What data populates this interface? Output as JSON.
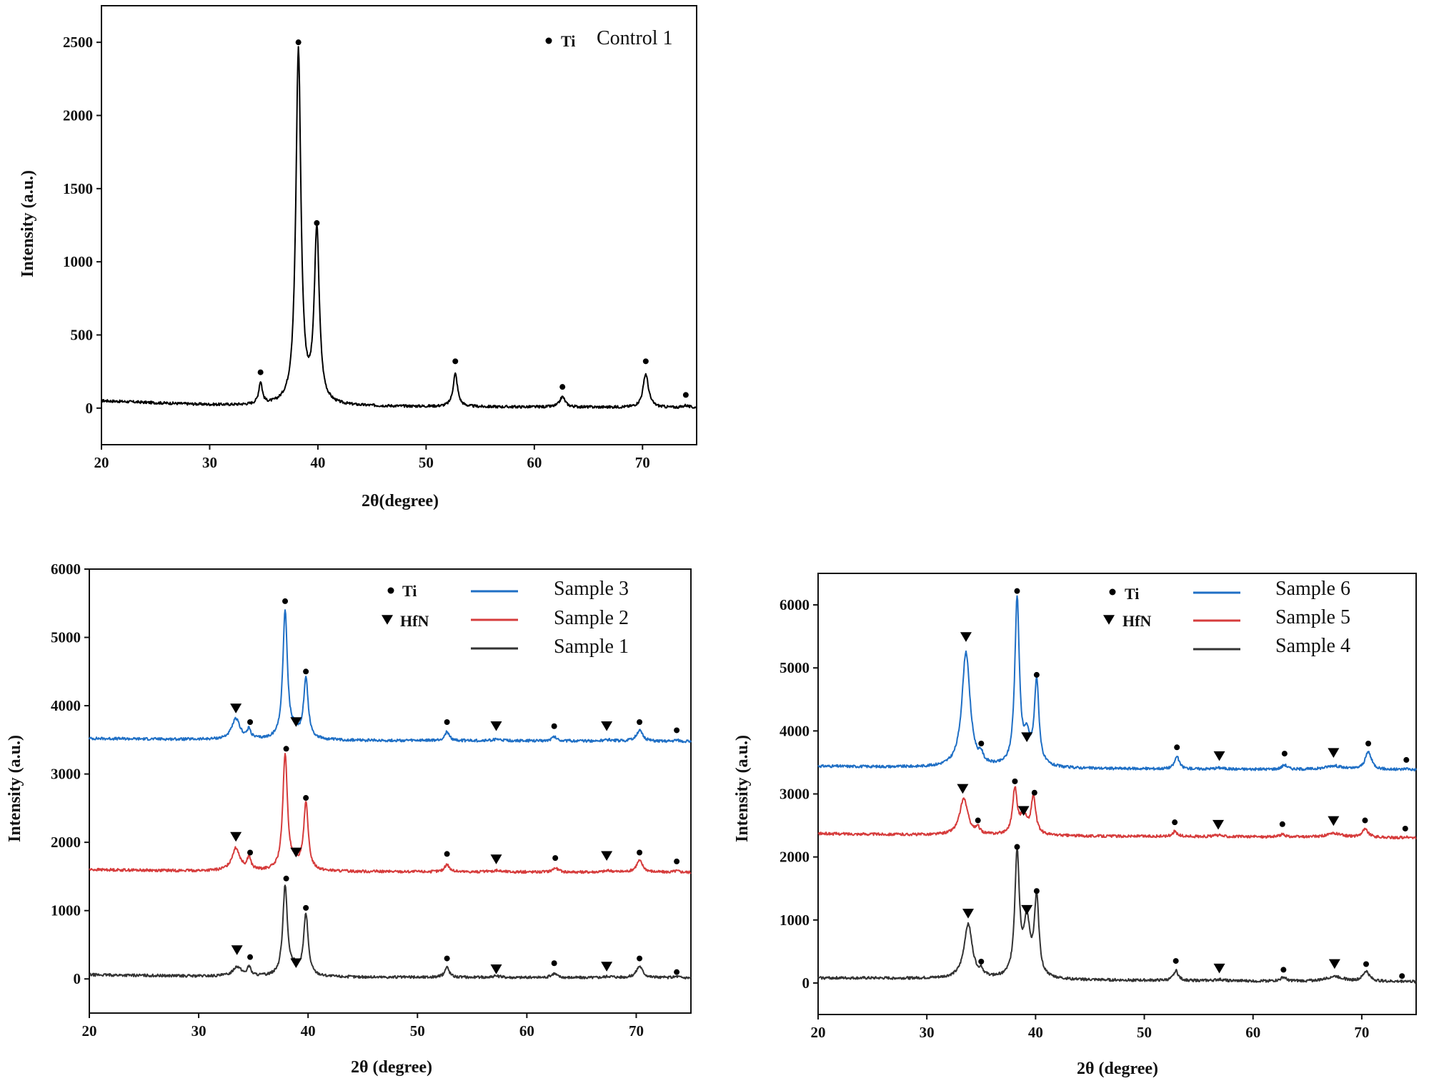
{
  "chart_data": [
    {
      "type": "line",
      "title": "",
      "xlabel": "2θ(degree)",
      "ylabel": "Intensity (a.u.)",
      "xlim": [
        20,
        75
      ],
      "ylim": [
        -250,
        2750
      ],
      "xticks": [
        20,
        30,
        40,
        50,
        60,
        70
      ],
      "yticks": [
        0,
        500,
        1000,
        1500,
        2000,
        2500
      ],
      "legend_placement": "top-right",
      "phase_legend": [
        {
          "symbol": "●",
          "label": "Ti"
        }
      ],
      "series": [
        {
          "name": "Control 1",
          "color": "#000000",
          "baseline": [
            [
              20,
              50
            ],
            [
              25,
              35
            ],
            [
              30,
              22
            ],
            [
              35,
              15
            ],
            [
              45,
              12
            ],
            [
              55,
              8
            ],
            [
              65,
              6
            ],
            [
              75,
              2
            ]
          ],
          "peaks": [
            [
              34.7,
              150,
              0.2
            ],
            [
              38.2,
              2420,
              0.28
            ],
            [
              39.9,
              1180,
              0.28
            ],
            [
              52.7,
              225,
              0.25
            ],
            [
              62.6,
              70,
              0.3
            ],
            [
              70.3,
              230,
              0.3
            ],
            [
              74.0,
              15,
              0.3
            ]
          ],
          "markers": [
            {
              "x": 34.7,
              "y": 245,
              "symbol": "dot"
            },
            {
              "x": 38.2,
              "y": 2500,
              "symbol": "dot"
            },
            {
              "x": 39.9,
              "y": 1265,
              "symbol": "dot"
            },
            {
              "x": 52.7,
              "y": 320,
              "symbol": "dot"
            },
            {
              "x": 62.6,
              "y": 145,
              "symbol": "dot"
            },
            {
              "x": 70.3,
              "y": 320,
              "symbol": "dot"
            },
            {
              "x": 74.0,
              "y": 90,
              "symbol": "dot"
            }
          ]
        }
      ]
    },
    {
      "type": "line",
      "title": "",
      "xlabel": "2θ (degree)",
      "ylabel": "Intensity (a.u.)",
      "xlim": [
        20,
        75
      ],
      "ylim": [
        -500,
        6000
      ],
      "xticks": [
        20,
        30,
        40,
        50,
        60,
        70
      ],
      "yticks": [
        0,
        1000,
        2000,
        3000,
        4000,
        5000,
        6000
      ],
      "legend_placement": "top-right",
      "phase_legend": [
        {
          "symbol": "●",
          "label": "Ti"
        },
        {
          "symbol": "▼",
          "label": "HfN"
        }
      ],
      "series": [
        {
          "name": "Sample 3",
          "color": "#1f6fc5",
          "baseline": [
            [
              20,
              3520
            ],
            [
              30,
              3505
            ],
            [
              45,
              3490
            ],
            [
              60,
              3485
            ],
            [
              75,
              3475
            ]
          ],
          "peaks": [
            [
              33.4,
              300,
              0.45
            ],
            [
              34.6,
              130,
              0.2
            ],
            [
              37.9,
              1880,
              0.25
            ],
            [
              38.8,
              100,
              0.4
            ],
            [
              39.8,
              880,
              0.25
            ],
            [
              52.7,
              130,
              0.25
            ],
            [
              57.2,
              20,
              0.5
            ],
            [
              62.5,
              60,
              0.3
            ],
            [
              67.5,
              20,
              0.5
            ],
            [
              70.3,
              160,
              0.35
            ],
            [
              73.7,
              20,
              0.3
            ]
          ],
          "markers": [
            {
              "x": 33.4,
              "y": 3960,
              "symbol": "tri"
            },
            {
              "x": 34.7,
              "y": 3760,
              "symbol": "dot"
            },
            {
              "x": 37.9,
              "y": 5530,
              "symbol": "dot"
            },
            {
              "x": 38.9,
              "y": 3760,
              "symbol": "tri"
            },
            {
              "x": 39.8,
              "y": 4500,
              "symbol": "dot"
            },
            {
              "x": 52.7,
              "y": 3760,
              "symbol": "dot"
            },
            {
              "x": 57.2,
              "y": 3700,
              "symbol": "tri"
            },
            {
              "x": 62.5,
              "y": 3700,
              "symbol": "dot"
            },
            {
              "x": 67.3,
              "y": 3700,
              "symbol": "tri"
            },
            {
              "x": 70.3,
              "y": 3760,
              "symbol": "dot"
            },
            {
              "x": 73.7,
              "y": 3640,
              "symbol": "dot"
            }
          ]
        },
        {
          "name": "Sample 2",
          "color": "#d63c3c",
          "baseline": [
            [
              20,
              1600
            ],
            [
              30,
              1580
            ],
            [
              45,
              1570
            ],
            [
              60,
              1565
            ],
            [
              75,
              1560
            ]
          ],
          "peaks": [
            [
              33.4,
              330,
              0.45
            ],
            [
              34.6,
              180,
              0.2
            ],
            [
              37.9,
              1700,
              0.25
            ],
            [
              38.8,
              100,
              0.4
            ],
            [
              39.8,
              980,
              0.25
            ],
            [
              52.7,
              110,
              0.25
            ],
            [
              57.2,
              20,
              0.5
            ],
            [
              62.6,
              60,
              0.3
            ],
            [
              67.5,
              20,
              0.5
            ],
            [
              70.3,
              170,
              0.35
            ],
            [
              73.7,
              20,
              0.3
            ]
          ],
          "markers": [
            {
              "x": 33.4,
              "y": 2080,
              "symbol": "tri"
            },
            {
              "x": 34.7,
              "y": 1850,
              "symbol": "dot"
            },
            {
              "x": 38.0,
              "y": 3370,
              "symbol": "dot"
            },
            {
              "x": 38.9,
              "y": 1850,
              "symbol": "tri"
            },
            {
              "x": 39.8,
              "y": 2650,
              "symbol": "dot"
            },
            {
              "x": 52.7,
              "y": 1830,
              "symbol": "dot"
            },
            {
              "x": 57.2,
              "y": 1750,
              "symbol": "tri"
            },
            {
              "x": 62.6,
              "y": 1770,
              "symbol": "dot"
            },
            {
              "x": 67.3,
              "y": 1800,
              "symbol": "tri"
            },
            {
              "x": 70.3,
              "y": 1850,
              "symbol": "dot"
            },
            {
              "x": 73.7,
              "y": 1720,
              "symbol": "dot"
            }
          ]
        },
        {
          "name": "Sample 1",
          "color": "#333333",
          "baseline": [
            [
              20,
              60
            ],
            [
              30,
              40
            ],
            [
              45,
              25
            ],
            [
              60,
              20
            ],
            [
              75,
              15
            ]
          ],
          "peaks": [
            [
              33.5,
              140,
              0.45
            ],
            [
              34.6,
              130,
              0.2
            ],
            [
              37.9,
              1320,
              0.25
            ],
            [
              38.8,
              100,
              0.4
            ],
            [
              39.8,
              900,
              0.25
            ],
            [
              52.7,
              150,
              0.25
            ],
            [
              57.2,
              20,
              0.5
            ],
            [
              62.5,
              60,
              0.3
            ],
            [
              67.5,
              20,
              0.5
            ],
            [
              70.3,
              170,
              0.35
            ],
            [
              73.7,
              20,
              0.3
            ]
          ],
          "markers": [
            {
              "x": 33.5,
              "y": 420,
              "symbol": "tri"
            },
            {
              "x": 34.7,
              "y": 320,
              "symbol": "dot"
            },
            {
              "x": 38.0,
              "y": 1470,
              "symbol": "dot"
            },
            {
              "x": 38.9,
              "y": 230,
              "symbol": "tri"
            },
            {
              "x": 39.8,
              "y": 1040,
              "symbol": "dot"
            },
            {
              "x": 52.7,
              "y": 300,
              "symbol": "dot"
            },
            {
              "x": 57.2,
              "y": 140,
              "symbol": "tri"
            },
            {
              "x": 62.5,
              "y": 230,
              "symbol": "dot"
            },
            {
              "x": 67.3,
              "y": 180,
              "symbol": "tri"
            },
            {
              "x": 70.3,
              "y": 300,
              "symbol": "dot"
            },
            {
              "x": 73.7,
              "y": 100,
              "symbol": "dot"
            }
          ]
        }
      ]
    },
    {
      "type": "line",
      "title": "",
      "xlabel": "2θ (degree)",
      "ylabel": "Intensity (a.u.)",
      "xlim": [
        20,
        75
      ],
      "ylim": [
        -500,
        6500
      ],
      "xticks": [
        20,
        30,
        40,
        50,
        60,
        70
      ],
      "yticks": [
        0,
        1000,
        2000,
        3000,
        4000,
        5000,
        6000
      ],
      "legend_placement": "top-right",
      "phase_legend": [
        {
          "symbol": "●",
          "label": "Ti"
        },
        {
          "symbol": "▼",
          "label": "HfN"
        }
      ],
      "series": [
        {
          "name": "Sample 6",
          "color": "#1f6fc5",
          "baseline": [
            [
              20,
              3440
            ],
            [
              30,
              3420
            ],
            [
              45,
              3400
            ],
            [
              60,
              3390
            ],
            [
              75,
              3380
            ]
          ],
          "peaks": [
            [
              33.6,
              1830,
              0.45
            ],
            [
              35.0,
              120,
              0.2
            ],
            [
              38.3,
              2650,
              0.25
            ],
            [
              39.2,
              400,
              0.35
            ],
            [
              40.1,
              1350,
              0.25
            ],
            [
              53.0,
              200,
              0.25
            ],
            [
              56.9,
              20,
              0.5
            ],
            [
              62.9,
              70,
              0.3
            ],
            [
              67.4,
              60,
              0.9
            ],
            [
              70.6,
              280,
              0.35
            ],
            [
              74.1,
              20,
              0.3
            ]
          ],
          "markers": [
            {
              "x": 33.6,
              "y": 5490,
              "symbol": "tri"
            },
            {
              "x": 35.0,
              "y": 3800,
              "symbol": "dot"
            },
            {
              "x": 38.3,
              "y": 6220,
              "symbol": "dot"
            },
            {
              "x": 39.2,
              "y": 3900,
              "symbol": "tri"
            },
            {
              "x": 40.1,
              "y": 4890,
              "symbol": "dot"
            },
            {
              "x": 53.0,
              "y": 3740,
              "symbol": "dot"
            },
            {
              "x": 56.9,
              "y": 3600,
              "symbol": "tri"
            },
            {
              "x": 62.9,
              "y": 3640,
              "symbol": "dot"
            },
            {
              "x": 67.4,
              "y": 3650,
              "symbol": "tri"
            },
            {
              "x": 70.6,
              "y": 3800,
              "symbol": "dot"
            },
            {
              "x": 74.1,
              "y": 3540,
              "symbol": "dot"
            }
          ]
        },
        {
          "name": "Sample 5",
          "color": "#d63c3c",
          "baseline": [
            [
              20,
              2370
            ],
            [
              30,
              2350
            ],
            [
              45,
              2330
            ],
            [
              60,
              2320
            ],
            [
              75,
              2300
            ]
          ],
          "peaks": [
            [
              33.4,
              580,
              0.45
            ],
            [
              34.7,
              90,
              0.2
            ],
            [
              38.1,
              720,
              0.25
            ],
            [
              38.9,
              300,
              0.35
            ],
            [
              39.8,
              600,
              0.25
            ],
            [
              52.8,
              80,
              0.25
            ],
            [
              56.8,
              20,
              0.5
            ],
            [
              62.7,
              40,
              0.3
            ],
            [
              67.5,
              60,
              0.9
            ],
            [
              70.3,
              130,
              0.35
            ],
            [
              74.0,
              10,
              0.3
            ]
          ],
          "markers": [
            {
              "x": 33.3,
              "y": 3080,
              "symbol": "tri"
            },
            {
              "x": 34.7,
              "y": 2580,
              "symbol": "dot"
            },
            {
              "x": 38.1,
              "y": 3200,
              "symbol": "dot"
            },
            {
              "x": 38.9,
              "y": 2730,
              "symbol": "tri"
            },
            {
              "x": 39.9,
              "y": 3020,
              "symbol": "dot"
            },
            {
              "x": 52.8,
              "y": 2550,
              "symbol": "dot"
            },
            {
              "x": 56.8,
              "y": 2510,
              "symbol": "tri"
            },
            {
              "x": 62.7,
              "y": 2520,
              "symbol": "dot"
            },
            {
              "x": 67.4,
              "y": 2570,
              "symbol": "tri"
            },
            {
              "x": 70.3,
              "y": 2580,
              "symbol": "dot"
            },
            {
              "x": 74.0,
              "y": 2450,
              "symbol": "dot"
            }
          ]
        },
        {
          "name": "Sample 4",
          "color": "#333333",
          "baseline": [
            [
              20,
              80
            ],
            [
              30,
              70
            ],
            [
              45,
              45
            ],
            [
              60,
              30
            ],
            [
              75,
              20
            ]
          ],
          "peaks": [
            [
              33.8,
              870,
              0.45
            ],
            [
              35.0,
              90,
              0.2
            ],
            [
              38.3,
              1960,
              0.25
            ],
            [
              39.2,
              850,
              0.35
            ],
            [
              40.1,
              1240,
              0.25
            ],
            [
              52.9,
              160,
              0.25
            ],
            [
              56.9,
              20,
              0.5
            ],
            [
              62.8,
              60,
              0.3
            ],
            [
              67.5,
              80,
              0.9
            ],
            [
              70.4,
              160,
              0.35
            ],
            [
              74.0,
              10,
              0.3
            ]
          ],
          "markers": [
            {
              "x": 33.8,
              "y": 1100,
              "symbol": "tri"
            },
            {
              "x": 35.0,
              "y": 340,
              "symbol": "dot"
            },
            {
              "x": 38.3,
              "y": 2160,
              "symbol": "dot"
            },
            {
              "x": 39.2,
              "y": 1160,
              "symbol": "tri"
            },
            {
              "x": 40.1,
              "y": 1460,
              "symbol": "dot"
            },
            {
              "x": 52.9,
              "y": 350,
              "symbol": "dot"
            },
            {
              "x": 56.9,
              "y": 230,
              "symbol": "tri"
            },
            {
              "x": 62.8,
              "y": 210,
              "symbol": "dot"
            },
            {
              "x": 67.5,
              "y": 300,
              "symbol": "tri"
            },
            {
              "x": 70.4,
              "y": 300,
              "symbol": "dot"
            },
            {
              "x": 73.7,
              "y": 110,
              "symbol": "dot"
            }
          ]
        }
      ]
    }
  ]
}
